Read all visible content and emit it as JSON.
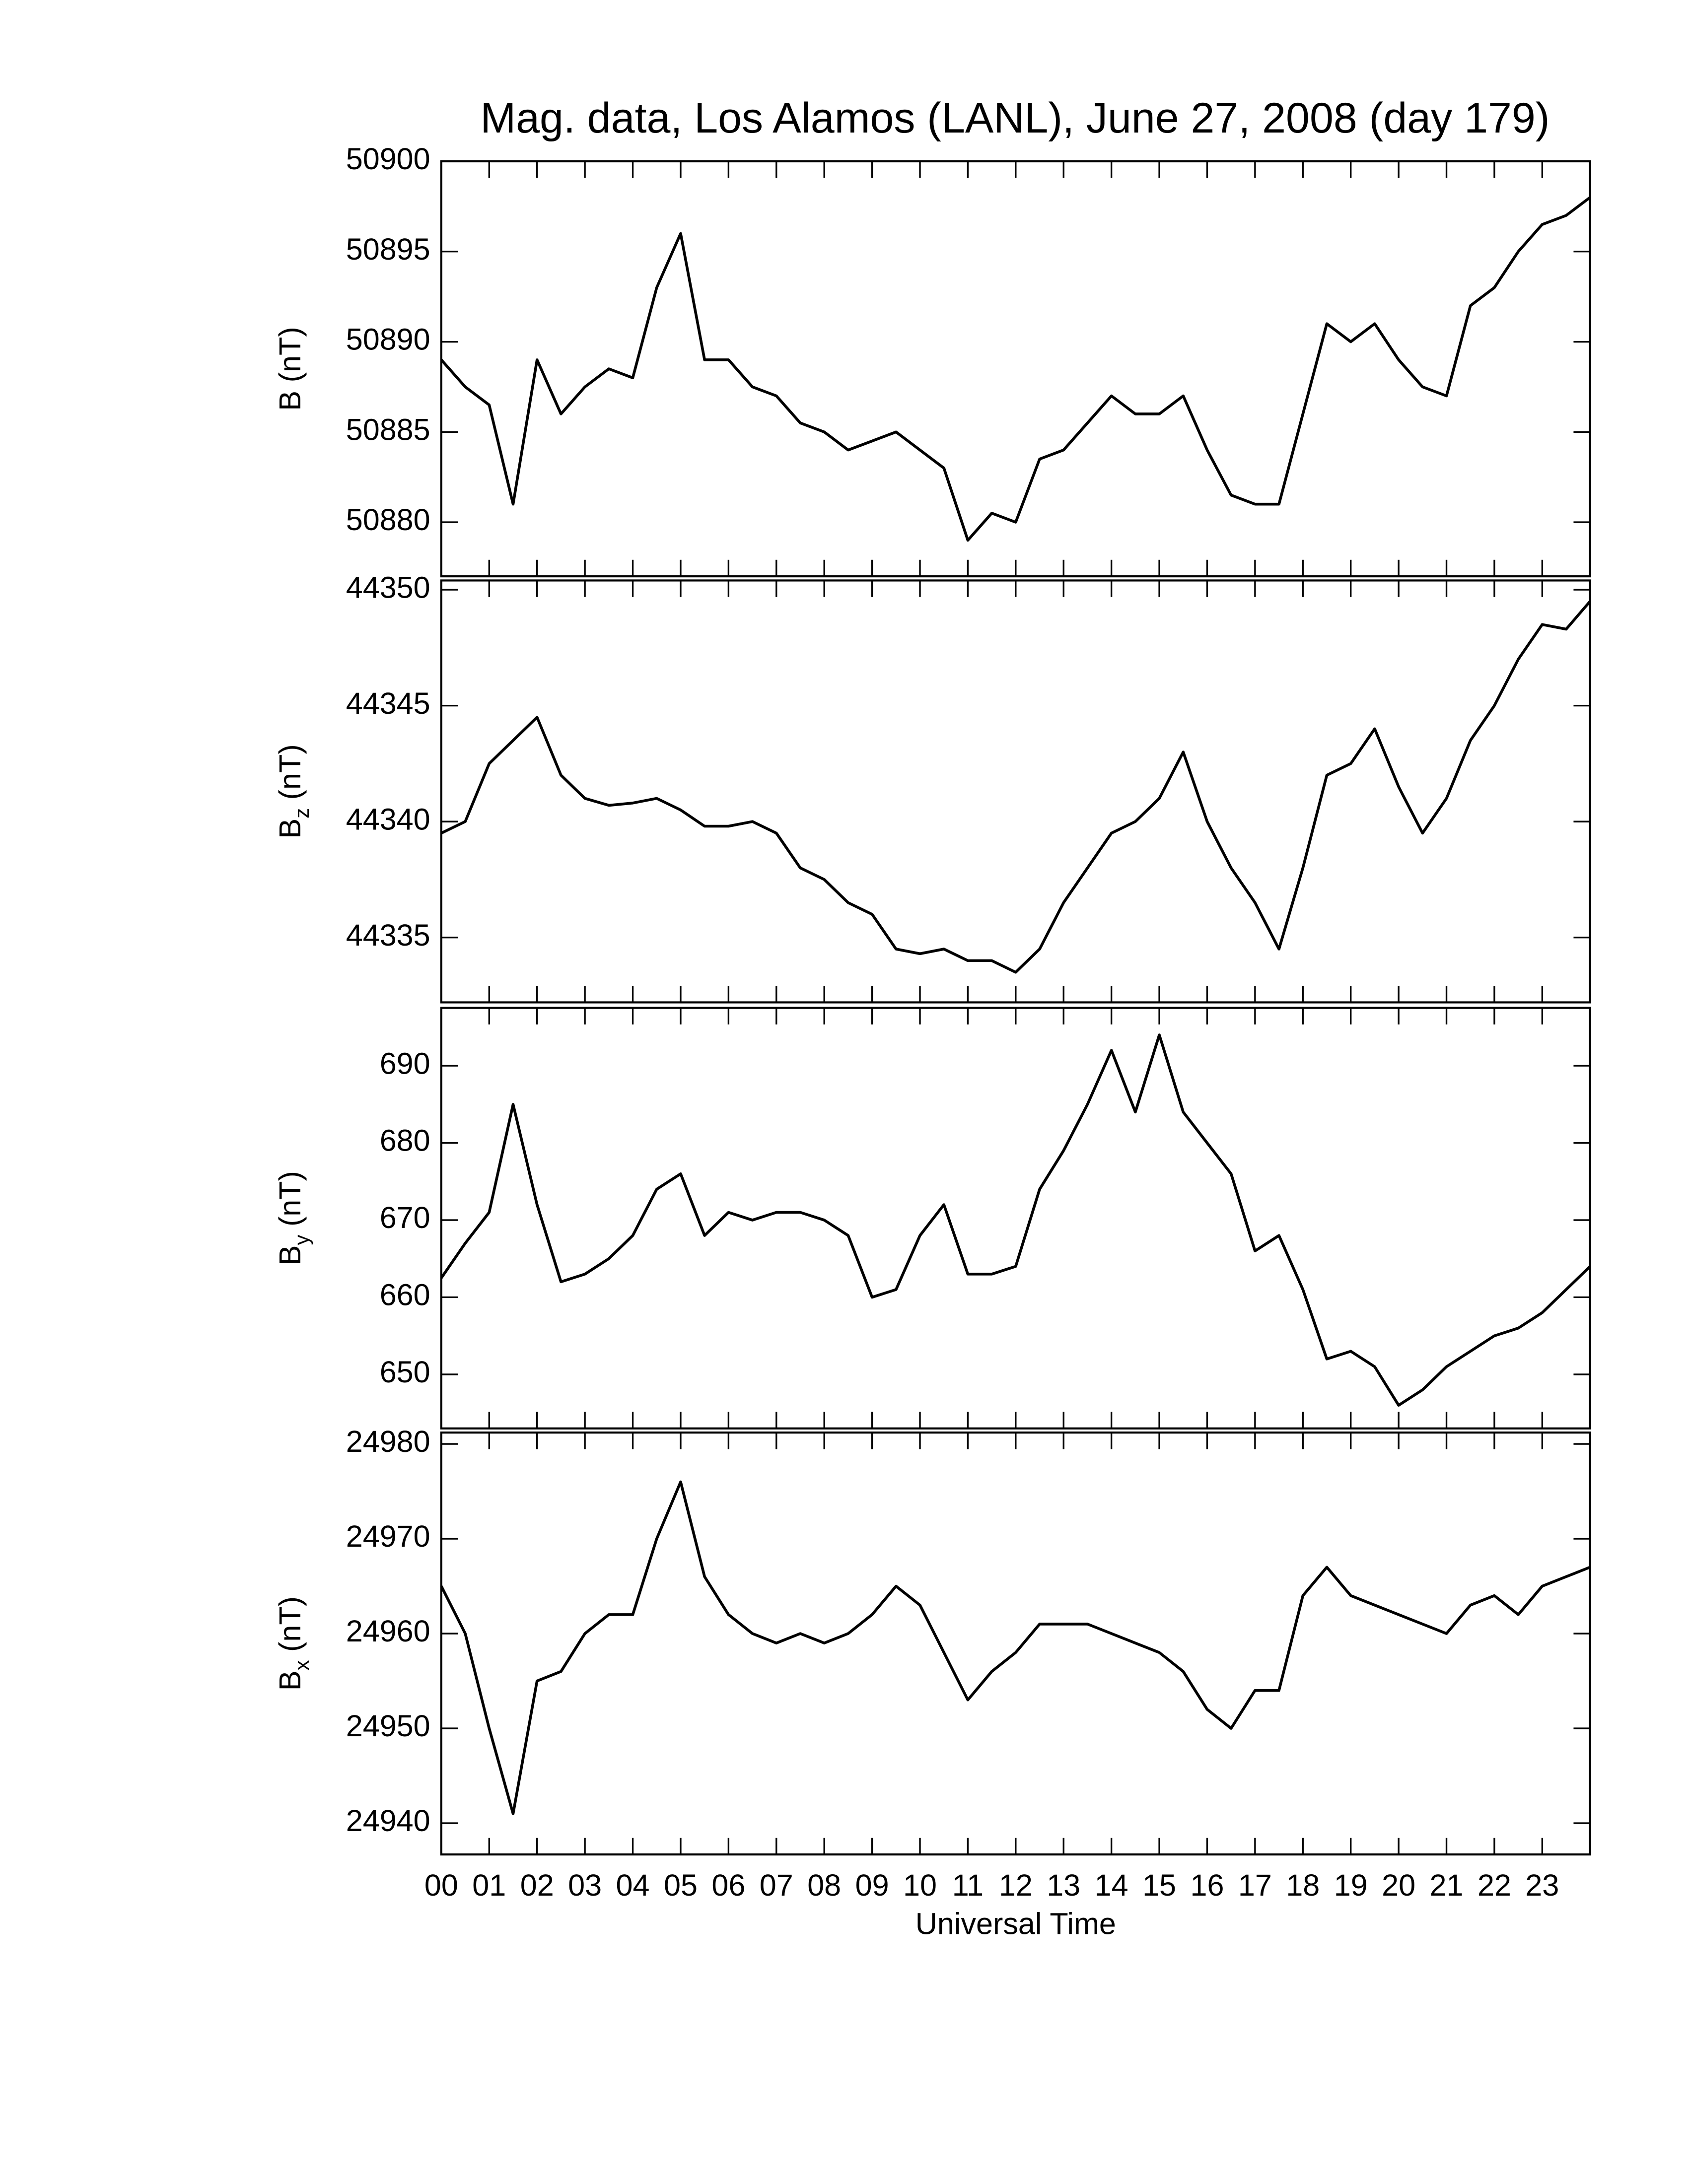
{
  "chart_data": [
    {
      "type": "line",
      "title": "Mag. data, Los Alamos (LANL), June 27, 2008 (day 179)",
      "ylabel": {
        "symbol": "B",
        "unit": "(nT)"
      },
      "xlim": [
        0,
        24
      ],
      "xticks": [
        0,
        1,
        2,
        3,
        4,
        5,
        6,
        7,
        8,
        9,
        10,
        11,
        12,
        13,
        14,
        15,
        16,
        17,
        18,
        19,
        20,
        21,
        22,
        23
      ],
      "ylim": [
        50877,
        50900
      ],
      "yticks": [
        50880,
        50885,
        50890,
        50895,
        50900
      ],
      "color": "#000000",
      "x": [
        0,
        0.5,
        1,
        1.5,
        2,
        2.5,
        3,
        3.5,
        4,
        4.5,
        5,
        5.5,
        6,
        6.5,
        7,
        7.5,
        8,
        8.5,
        9,
        9.5,
        10,
        10.5,
        11,
        11.5,
        12,
        12.5,
        13,
        13.5,
        14,
        14.5,
        15,
        15.5,
        16,
        16.5,
        17,
        17.5,
        18,
        18.5,
        19,
        19.5,
        20,
        20.5,
        21,
        21.5,
        22,
        22.5,
        23,
        23.5,
        24
      ],
      "values": [
        50889,
        50887.5,
        50886.5,
        50881,
        50889,
        50886,
        50887.5,
        50888.5,
        50888,
        50893,
        50896,
        50889,
        50889,
        50887.5,
        50887,
        50885.5,
        50885,
        50884,
        50884.5,
        50885,
        50884,
        50883,
        50879,
        50880.5,
        50880,
        50883.5,
        50884,
        50885.5,
        50887,
        50886,
        50886,
        50887,
        50884,
        50881.5,
        50881,
        50881,
        50886,
        50891,
        50890,
        50891,
        50889,
        50887.5,
        50887,
        50892,
        50893,
        50895,
        50896.5,
        50897,
        50898
      ]
    },
    {
      "type": "line",
      "ylabel": {
        "symbol": "B",
        "sub": "z",
        "unit": "(nT)"
      },
      "xlim": [
        0,
        24
      ],
      "xticks": [
        0,
        1,
        2,
        3,
        4,
        5,
        6,
        7,
        8,
        9,
        10,
        11,
        12,
        13,
        14,
        15,
        16,
        17,
        18,
        19,
        20,
        21,
        22,
        23
      ],
      "ylim": [
        44332.2,
        44350.4
      ],
      "yticks": [
        44335,
        44340,
        44345,
        44350
      ],
      "color": "#000000",
      "x": [
        0,
        0.5,
        1,
        1.5,
        2,
        2.5,
        3,
        3.5,
        4,
        4.5,
        5,
        5.5,
        6,
        6.5,
        7,
        7.5,
        8,
        8.5,
        9,
        9.5,
        10,
        10.5,
        11,
        11.5,
        12,
        12.5,
        13,
        13.5,
        14,
        14.5,
        15,
        15.5,
        16,
        16.5,
        17,
        17.5,
        18,
        18.5,
        19,
        19.5,
        20,
        20.5,
        21,
        21.5,
        22,
        22.5,
        23,
        23.5,
        24
      ],
      "values": [
        44339.5,
        44340,
        44342.5,
        44343.5,
        44344.5,
        44342,
        44341,
        44340.7,
        44340.8,
        44341,
        44340.5,
        44339.8,
        44339.8,
        44340,
        44339.5,
        44338,
        44337.5,
        44336.5,
        44336,
        44334.5,
        44334.3,
        44334.5,
        44334,
        44334,
        44333.5,
        44334.5,
        44336.5,
        44338,
        44339.5,
        44340,
        44341,
        44343,
        44340,
        44338,
        44336.5,
        44334.5,
        44338,
        44342,
        44342.5,
        44344,
        44341.5,
        44339.5,
        44341,
        44343.5,
        44345,
        44347,
        44348.5,
        44348.3,
        44349.5
      ]
    },
    {
      "type": "line",
      "ylabel": {
        "symbol": "B",
        "sub": "y",
        "unit": "(nT)"
      },
      "xlim": [
        0,
        24
      ],
      "xticks": [
        0,
        1,
        2,
        3,
        4,
        5,
        6,
        7,
        8,
        9,
        10,
        11,
        12,
        13,
        14,
        15,
        16,
        17,
        18,
        19,
        20,
        21,
        22,
        23
      ],
      "ylim": [
        643,
        697.5
      ],
      "yticks": [
        650,
        660,
        670,
        680,
        690
      ],
      "color": "#000000",
      "x": [
        0,
        0.5,
        1,
        1.5,
        2,
        2.5,
        3,
        3.5,
        4,
        4.5,
        5,
        5.5,
        6,
        6.5,
        7,
        7.5,
        8,
        8.5,
        9,
        9.5,
        10,
        10.5,
        11,
        11.5,
        12,
        12.5,
        13,
        13.5,
        14,
        14.5,
        15,
        15.5,
        16,
        16.5,
        17,
        17.5,
        18,
        18.5,
        19,
        19.5,
        20,
        20.5,
        21,
        21.5,
        22,
        22.5,
        23,
        23.5,
        24
      ],
      "values": [
        662.5,
        667,
        671,
        685,
        672,
        662,
        663,
        665,
        668,
        674,
        676,
        668,
        671,
        670,
        671,
        671,
        670,
        668,
        660,
        661,
        668,
        672,
        663,
        663,
        664,
        674,
        679,
        685,
        692,
        684,
        694,
        684,
        680,
        676,
        666,
        668,
        661,
        652,
        653,
        651,
        646,
        648,
        651,
        653,
        655,
        656,
        658,
        661,
        664
      ]
    },
    {
      "type": "line",
      "ylabel": {
        "symbol": "B",
        "sub": "x",
        "unit": "(nT)"
      },
      "xlabel": "Universal Time",
      "xlim": [
        0,
        24
      ],
      "xticks": [
        {
          "value": 0,
          "label": "00"
        },
        {
          "value": 1,
          "label": "01"
        },
        {
          "value": 2,
          "label": "02"
        },
        {
          "value": 3,
          "label": "03"
        },
        {
          "value": 4,
          "label": "04"
        },
        {
          "value": 5,
          "label": "05"
        },
        {
          "value": 6,
          "label": "06"
        },
        {
          "value": 7,
          "label": "07"
        },
        {
          "value": 8,
          "label": "08"
        },
        {
          "value": 9,
          "label": "09"
        },
        {
          "value": 10,
          "label": "10"
        },
        {
          "value": 11,
          "label": "11"
        },
        {
          "value": 12,
          "label": "12"
        },
        {
          "value": 13,
          "label": "13"
        },
        {
          "value": 14,
          "label": "14"
        },
        {
          "value": 15,
          "label": "15"
        },
        {
          "value": 16,
          "label": "16"
        },
        {
          "value": 17,
          "label": "17"
        },
        {
          "value": 18,
          "label": "18"
        },
        {
          "value": 19,
          "label": "19"
        },
        {
          "value": 20,
          "label": "20"
        },
        {
          "value": 21,
          "label": "21"
        },
        {
          "value": 22,
          "label": "22"
        },
        {
          "value": 23,
          "label": "23"
        }
      ],
      "ylim": [
        24936.7,
        24981.2
      ],
      "yticks": [
        24940,
        24950,
        24960,
        24970,
        24980
      ],
      "color": "#000000",
      "x": [
        0,
        0.5,
        1,
        1.5,
        2,
        2.5,
        3,
        3.5,
        4,
        4.5,
        5,
        5.5,
        6,
        6.5,
        7,
        7.5,
        8,
        8.5,
        9,
        9.5,
        10,
        10.5,
        11,
        11.5,
        12,
        12.5,
        13,
        13.5,
        14,
        14.5,
        15,
        15.5,
        16,
        16.5,
        17,
        17.5,
        18,
        18.5,
        19,
        19.5,
        20,
        20.5,
        21,
        21.5,
        22,
        22.5,
        23,
        23.5,
        24
      ],
      "values": [
        24965,
        24960,
        24950,
        24941,
        24955,
        24956,
        24960,
        24962,
        24962,
        24970,
        24976,
        24966,
        24962,
        24960,
        24959,
        24960,
        24959,
        24960,
        24962,
        24965,
        24963,
        24958,
        24953,
        24956,
        24958,
        24961,
        24961,
        24961,
        24960,
        24959,
        24958,
        24956,
        24952,
        24950,
        24954,
        24954,
        24964,
        24967,
        24964,
        24963,
        24962,
        24961,
        24960,
        24963,
        24964,
        24962,
        24965,
        24966,
        24967
      ]
    }
  ]
}
